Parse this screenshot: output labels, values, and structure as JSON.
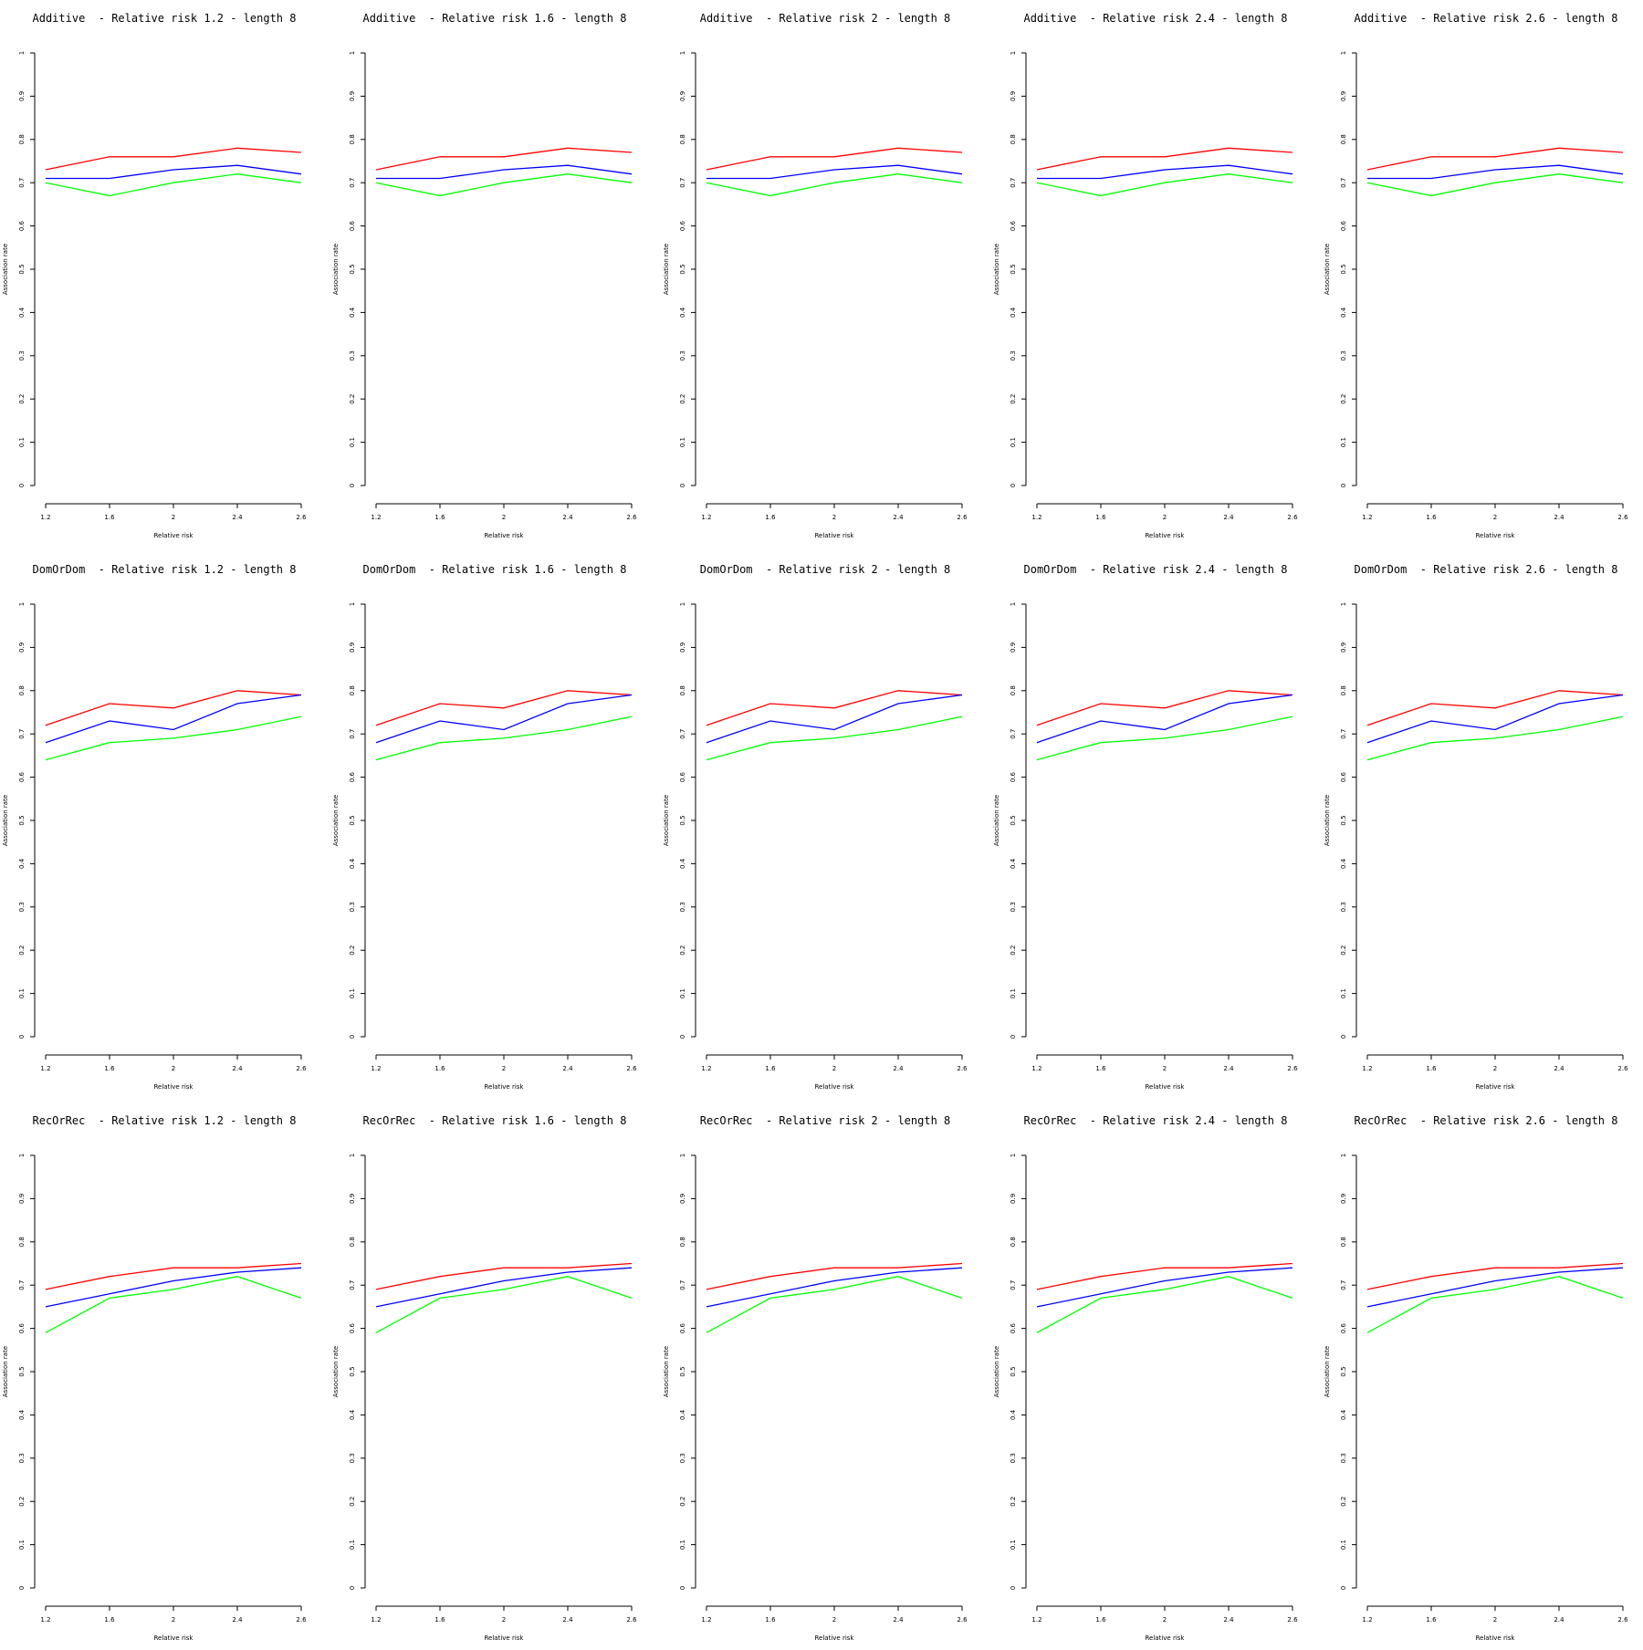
{
  "axis_titles": {
    "x": "Relative risk",
    "y": "Association rate"
  },
  "x_tick_labels": [
    "1.2",
    "1.6",
    "2",
    "2.4",
    "2.6"
  ],
  "y_tick_labels": [
    "0",
    "0.1",
    "0.2",
    "0.3",
    "0.4",
    "0.5",
    "0.6",
    "0.7",
    "0.8",
    "0.9",
    "1"
  ],
  "colors": {
    "red": "#ff0000",
    "blue": "#0000ff",
    "green": "#00ff00"
  },
  "chart_data": [
    {
      "type": "line",
      "title": "Additive  - Relative risk 1.2 - length 8",
      "xlabel": "Relative risk",
      "ylabel": "Association rate",
      "x": [
        "1.2",
        "1.6",
        "2",
        "2.4",
        "2.6"
      ],
      "ylim": [
        0,
        1
      ],
      "series": [
        {
          "color": "#ff0000",
          "values": [
            0.73,
            0.76,
            0.76,
            0.78,
            0.77
          ]
        },
        {
          "color": "#0000ff",
          "values": [
            0.71,
            0.71,
            0.73,
            0.74,
            0.72
          ]
        },
        {
          "color": "#00ff00",
          "values": [
            0.7,
            0.67,
            0.7,
            0.72,
            0.7
          ]
        }
      ]
    },
    {
      "type": "line",
      "title": "Additive  - Relative risk 1.6 - length 8",
      "xlabel": "Relative risk",
      "ylabel": "Association rate",
      "x": [
        "1.2",
        "1.6",
        "2",
        "2.4",
        "2.6"
      ],
      "ylim": [
        0,
        1
      ],
      "series": [
        {
          "color": "#ff0000",
          "values": [
            0.73,
            0.76,
            0.76,
            0.78,
            0.77
          ]
        },
        {
          "color": "#0000ff",
          "values": [
            0.71,
            0.71,
            0.73,
            0.74,
            0.72
          ]
        },
        {
          "color": "#00ff00",
          "values": [
            0.7,
            0.67,
            0.7,
            0.72,
            0.7
          ]
        }
      ]
    },
    {
      "type": "line",
      "title": "Additive  - Relative risk 2 - length 8",
      "xlabel": "Relative risk",
      "ylabel": "Association rate",
      "x": [
        "1.2",
        "1.6",
        "2",
        "2.4",
        "2.6"
      ],
      "ylim": [
        0,
        1
      ],
      "series": [
        {
          "color": "#ff0000",
          "values": [
            0.73,
            0.76,
            0.76,
            0.78,
            0.77
          ]
        },
        {
          "color": "#0000ff",
          "values": [
            0.71,
            0.71,
            0.73,
            0.74,
            0.72
          ]
        },
        {
          "color": "#00ff00",
          "values": [
            0.7,
            0.67,
            0.7,
            0.72,
            0.7
          ]
        }
      ]
    },
    {
      "type": "line",
      "title": "Additive  - Relative risk 2.4 - length 8",
      "xlabel": "Relative risk",
      "ylabel": "Association rate",
      "x": [
        "1.2",
        "1.6",
        "2",
        "2.4",
        "2.6"
      ],
      "ylim": [
        0,
        1
      ],
      "series": [
        {
          "color": "#ff0000",
          "values": [
            0.73,
            0.76,
            0.76,
            0.78,
            0.77
          ]
        },
        {
          "color": "#0000ff",
          "values": [
            0.71,
            0.71,
            0.73,
            0.74,
            0.72
          ]
        },
        {
          "color": "#00ff00",
          "values": [
            0.7,
            0.67,
            0.7,
            0.72,
            0.7
          ]
        }
      ]
    },
    {
      "type": "line",
      "title": "Additive  - Relative risk 2.6 - length 8",
      "xlabel": "Relative risk",
      "ylabel": "Association rate",
      "x": [
        "1.2",
        "1.6",
        "2",
        "2.4",
        "2.6"
      ],
      "ylim": [
        0,
        1
      ],
      "series": [
        {
          "color": "#ff0000",
          "values": [
            0.73,
            0.76,
            0.76,
            0.78,
            0.77
          ]
        },
        {
          "color": "#0000ff",
          "values": [
            0.71,
            0.71,
            0.73,
            0.74,
            0.72
          ]
        },
        {
          "color": "#00ff00",
          "values": [
            0.7,
            0.67,
            0.7,
            0.72,
            0.7
          ]
        }
      ]
    },
    {
      "type": "line",
      "title": "DomOrDom  - Relative risk 1.2 - length 8",
      "xlabel": "Relative risk",
      "ylabel": "Association rate",
      "x": [
        "1.2",
        "1.6",
        "2",
        "2.4",
        "2.6"
      ],
      "ylim": [
        0,
        1
      ],
      "series": [
        {
          "color": "#ff0000",
          "values": [
            0.72,
            0.77,
            0.76,
            0.8,
            0.79
          ]
        },
        {
          "color": "#0000ff",
          "values": [
            0.68,
            0.73,
            0.71,
            0.77,
            0.79
          ]
        },
        {
          "color": "#00ff00",
          "values": [
            0.64,
            0.68,
            0.69,
            0.71,
            0.74
          ]
        }
      ]
    },
    {
      "type": "line",
      "title": "DomOrDom  - Relative risk 1.6 - length 8",
      "xlabel": "Relative risk",
      "ylabel": "Association rate",
      "x": [
        "1.2",
        "1.6",
        "2",
        "2.4",
        "2.6"
      ],
      "ylim": [
        0,
        1
      ],
      "series": [
        {
          "color": "#ff0000",
          "values": [
            0.72,
            0.77,
            0.76,
            0.8,
            0.79
          ]
        },
        {
          "color": "#0000ff",
          "values": [
            0.68,
            0.73,
            0.71,
            0.77,
            0.79
          ]
        },
        {
          "color": "#00ff00",
          "values": [
            0.64,
            0.68,
            0.69,
            0.71,
            0.74
          ]
        }
      ]
    },
    {
      "type": "line",
      "title": "DomOrDom  - Relative risk 2 - length 8",
      "xlabel": "Relative risk",
      "ylabel": "Association rate",
      "x": [
        "1.2",
        "1.6",
        "2",
        "2.4",
        "2.6"
      ],
      "ylim": [
        0,
        1
      ],
      "series": [
        {
          "color": "#ff0000",
          "values": [
            0.72,
            0.77,
            0.76,
            0.8,
            0.79
          ]
        },
        {
          "color": "#0000ff",
          "values": [
            0.68,
            0.73,
            0.71,
            0.77,
            0.79
          ]
        },
        {
          "color": "#00ff00",
          "values": [
            0.64,
            0.68,
            0.69,
            0.71,
            0.74
          ]
        }
      ]
    },
    {
      "type": "line",
      "title": "DomOrDom  - Relative risk 2.4 - length 8",
      "xlabel": "Relative risk",
      "ylabel": "Association rate",
      "x": [
        "1.2",
        "1.6",
        "2",
        "2.4",
        "2.6"
      ],
      "ylim": [
        0,
        1
      ],
      "series": [
        {
          "color": "#ff0000",
          "values": [
            0.72,
            0.77,
            0.76,
            0.8,
            0.79
          ]
        },
        {
          "color": "#0000ff",
          "values": [
            0.68,
            0.73,
            0.71,
            0.77,
            0.79
          ]
        },
        {
          "color": "#00ff00",
          "values": [
            0.64,
            0.68,
            0.69,
            0.71,
            0.74
          ]
        }
      ]
    },
    {
      "type": "line",
      "title": "DomOrDom  - Relative risk 2.6 - length 8",
      "xlabel": "Relative risk",
      "ylabel": "Association rate",
      "x": [
        "1.2",
        "1.6",
        "2",
        "2.4",
        "2.6"
      ],
      "ylim": [
        0,
        1
      ],
      "series": [
        {
          "color": "#ff0000",
          "values": [
            0.72,
            0.77,
            0.76,
            0.8,
            0.79
          ]
        },
        {
          "color": "#0000ff",
          "values": [
            0.68,
            0.73,
            0.71,
            0.77,
            0.79
          ]
        },
        {
          "color": "#00ff00",
          "values": [
            0.64,
            0.68,
            0.69,
            0.71,
            0.74
          ]
        }
      ]
    },
    {
      "type": "line",
      "title": "RecOrRec  - Relative risk 1.2 - length 8",
      "xlabel": "Relative risk",
      "ylabel": "Association rate",
      "x": [
        "1.2",
        "1.6",
        "2",
        "2.4",
        "2.6"
      ],
      "ylim": [
        0,
        1
      ],
      "series": [
        {
          "color": "#ff0000",
          "values": [
            0.69,
            0.72,
            0.74,
            0.74,
            0.75
          ]
        },
        {
          "color": "#0000ff",
          "values": [
            0.65,
            0.68,
            0.71,
            0.73,
            0.74
          ]
        },
        {
          "color": "#00ff00",
          "values": [
            0.59,
            0.67,
            0.69,
            0.72,
            0.67
          ]
        }
      ]
    },
    {
      "type": "line",
      "title": "RecOrRec  - Relative risk 1.6 - length 8",
      "xlabel": "Relative risk",
      "ylabel": "Association rate",
      "x": [
        "1.2",
        "1.6",
        "2",
        "2.4",
        "2.6"
      ],
      "ylim": [
        0,
        1
      ],
      "series": [
        {
          "color": "#ff0000",
          "values": [
            0.69,
            0.72,
            0.74,
            0.74,
            0.75
          ]
        },
        {
          "color": "#0000ff",
          "values": [
            0.65,
            0.68,
            0.71,
            0.73,
            0.74
          ]
        },
        {
          "color": "#00ff00",
          "values": [
            0.59,
            0.67,
            0.69,
            0.72,
            0.67
          ]
        }
      ]
    },
    {
      "type": "line",
      "title": "RecOrRec  - Relative risk 2 - length 8",
      "xlabel": "Relative risk",
      "ylabel": "Association rate",
      "x": [
        "1.2",
        "1.6",
        "2",
        "2.4",
        "2.6"
      ],
      "ylim": [
        0,
        1
      ],
      "series": [
        {
          "color": "#ff0000",
          "values": [
            0.69,
            0.72,
            0.74,
            0.74,
            0.75
          ]
        },
        {
          "color": "#0000ff",
          "values": [
            0.65,
            0.68,
            0.71,
            0.73,
            0.74
          ]
        },
        {
          "color": "#00ff00",
          "values": [
            0.59,
            0.67,
            0.69,
            0.72,
            0.67
          ]
        }
      ]
    },
    {
      "type": "line",
      "title": "RecOrRec  - Relative risk 2.4 - length 8",
      "xlabel": "Relative risk",
      "ylabel": "Association rate",
      "x": [
        "1.2",
        "1.6",
        "2",
        "2.4",
        "2.6"
      ],
      "ylim": [
        0,
        1
      ],
      "series": [
        {
          "color": "#ff0000",
          "values": [
            0.69,
            0.72,
            0.74,
            0.74,
            0.75
          ]
        },
        {
          "color": "#0000ff",
          "values": [
            0.65,
            0.68,
            0.71,
            0.73,
            0.74
          ]
        },
        {
          "color": "#00ff00",
          "values": [
            0.59,
            0.67,
            0.69,
            0.72,
            0.67
          ]
        }
      ]
    },
    {
      "type": "line",
      "title": "RecOrRec  - Relative risk 2.6 - length 8",
      "xlabel": "Relative risk",
      "ylabel": "Association rate",
      "x": [
        "1.2",
        "1.6",
        "2",
        "2.4",
        "2.6"
      ],
      "ylim": [
        0,
        1
      ],
      "series": [
        {
          "color": "#ff0000",
          "values": [
            0.69,
            0.72,
            0.74,
            0.74,
            0.75
          ]
        },
        {
          "color": "#0000ff",
          "values": [
            0.65,
            0.68,
            0.71,
            0.73,
            0.74
          ]
        },
        {
          "color": "#00ff00",
          "values": [
            0.59,
            0.67,
            0.69,
            0.72,
            0.67
          ]
        }
      ]
    }
  ]
}
